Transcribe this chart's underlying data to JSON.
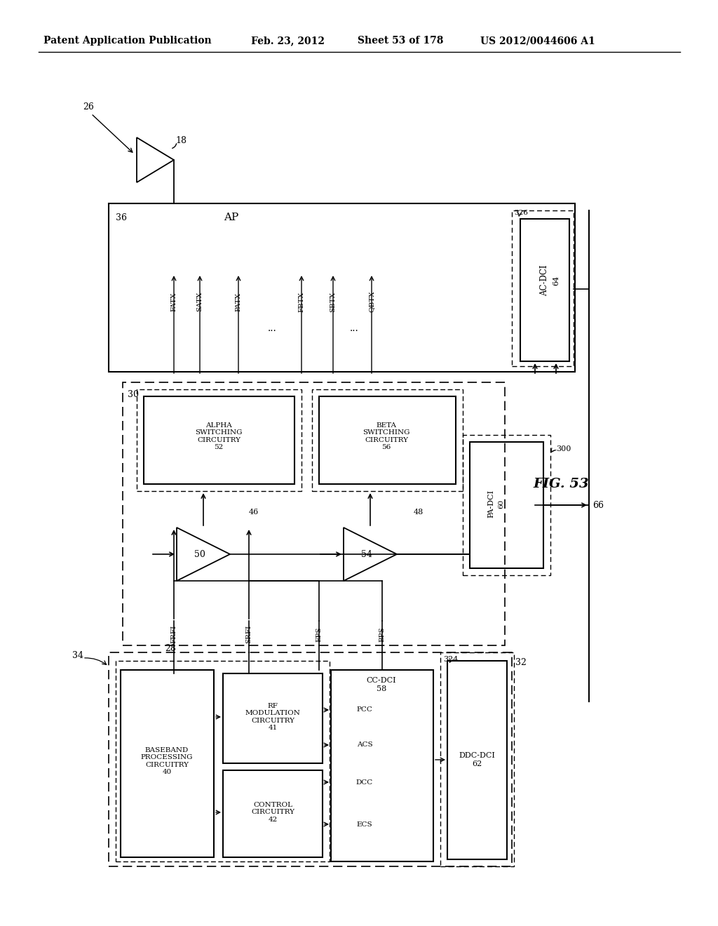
{
  "header_left": "Patent Application Publication",
  "header_mid1": "Feb. 23, 2012",
  "header_mid2": "Sheet 53 of 178",
  "header_right": "US 2012/0044606 A1",
  "fig_label": "FIG. 53",
  "bg_color": "#ffffff",
  "lc": "#000000"
}
